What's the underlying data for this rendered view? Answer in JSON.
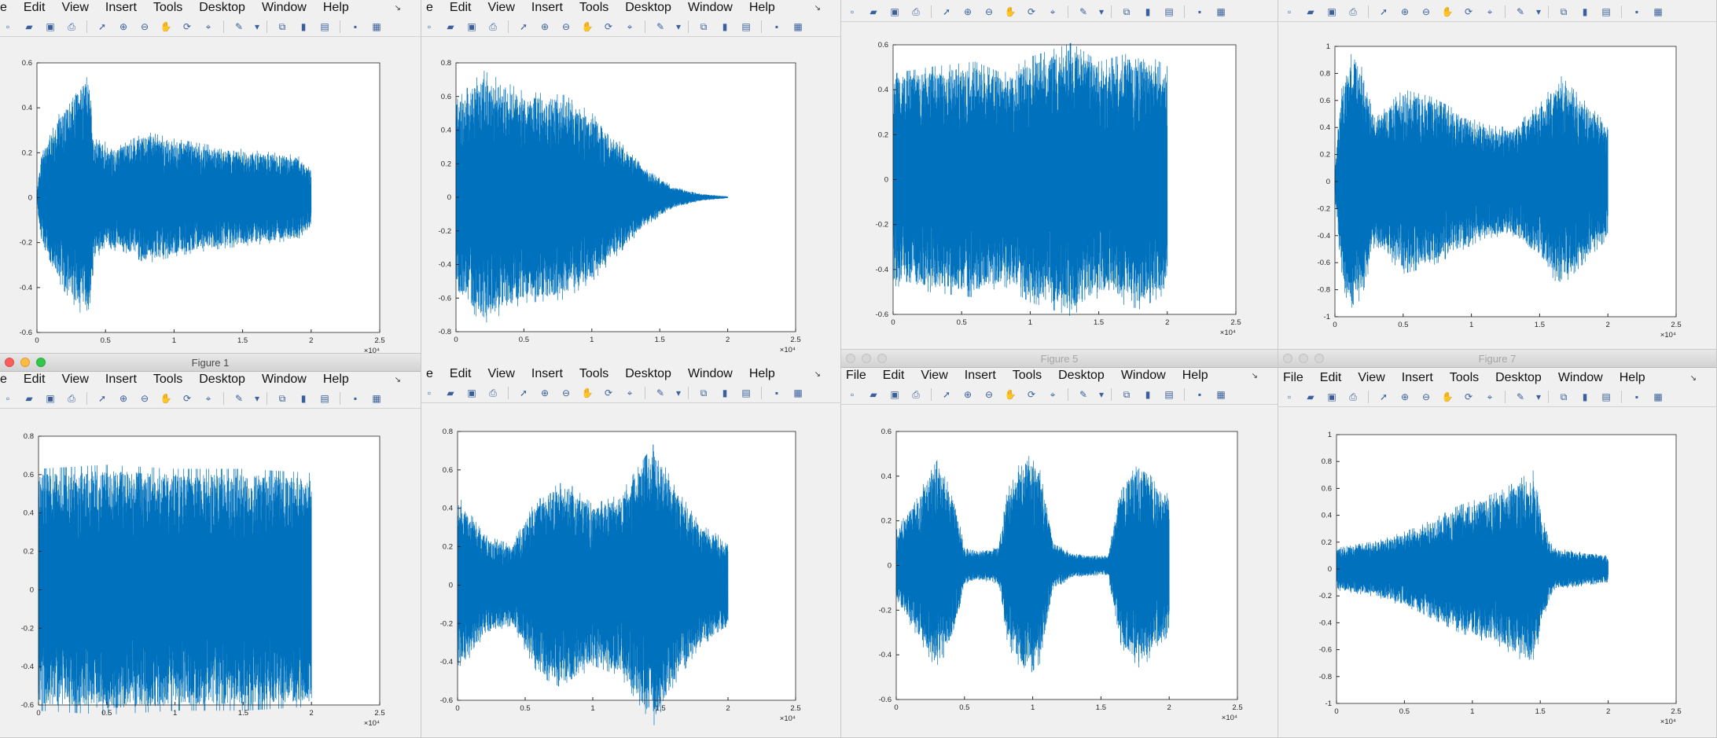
{
  "menu": [
    "File",
    "Edit",
    "View",
    "Insert",
    "Tools",
    "Desktop",
    "Window",
    "Help"
  ],
  "toolbar_icons": [
    "new-figure-icon",
    "open-file-icon",
    "save-icon",
    "print-icon",
    "pointer-icon",
    "zoom-in-icon",
    "zoom-out-icon",
    "pan-icon",
    "rotate-icon",
    "data-cursor-icon",
    "brush-icon",
    "brush-dropdown-icon",
    "link-plot-icon",
    "colorbar-icon",
    "legend-icon",
    "hide-plot-tools-icon",
    "show-plot-tools-icon"
  ],
  "colors": {
    "line": "#0072BD",
    "axes": "#262626",
    "window_bg": "#f0f0f0"
  },
  "windows": [
    {
      "id": "w1",
      "title": "",
      "menu_first": "e",
      "dock": "↘",
      "chart_data": {
        "type": "line",
        "xlim": [
          0,
          2.5
        ],
        "ylim": [
          -0.6,
          0.6
        ],
        "x_ticks": [
          "0",
          "0.5",
          "1",
          "1.5",
          "2",
          "2.5"
        ],
        "y_ticks": [
          "-0.6",
          "-0.4",
          "-0.2",
          "0",
          "0.2",
          "0.4",
          "0.6"
        ],
        "x_exponent": "×10⁴",
        "signal": {
          "length": 2.0,
          "envelope": [
            [
              0,
              0.02
            ],
            [
              0.03,
              0.18
            ],
            [
              0.18,
              0.38
            ],
            [
              0.3,
              0.48
            ],
            [
              0.38,
              0.52
            ],
            [
              0.42,
              0.25
            ],
            [
              0.6,
              0.22
            ],
            [
              0.8,
              0.28
            ],
            [
              1.0,
              0.25
            ],
            [
              1.3,
              0.22
            ],
            [
              1.6,
              0.2
            ],
            [
              1.9,
              0.18
            ],
            [
              2.0,
              0.12
            ]
          ]
        }
      }
    },
    {
      "id": "w2",
      "title": "",
      "menu_first": "e",
      "dock": "↘",
      "chart_data": {
        "type": "line",
        "xlim": [
          0,
          2.5
        ],
        "ylim": [
          -0.8,
          0.8
        ],
        "x_ticks": [
          "0",
          "0.5",
          "1",
          "1.5",
          "2",
          "2.5"
        ],
        "y_ticks": [
          "-0.8",
          "-0.6",
          "-0.4",
          "-0.2",
          "0",
          "0.2",
          "0.4",
          "0.6",
          "0.8"
        ],
        "x_exponent": "×10⁴",
        "signal": {
          "length": 2.0,
          "envelope": [
            [
              0,
              0.55
            ],
            [
              0.2,
              0.72
            ],
            [
              0.5,
              0.6
            ],
            [
              0.8,
              0.58
            ],
            [
              1.0,
              0.48
            ],
            [
              1.2,
              0.32
            ],
            [
              1.4,
              0.16
            ],
            [
              1.6,
              0.06
            ],
            [
              1.8,
              0.02
            ],
            [
              2.0,
              0.005
            ]
          ]
        }
      }
    },
    {
      "id": "w3",
      "title": "",
      "menu_first": "",
      "dock": "",
      "chart_data": {
        "type": "line",
        "xlim": [
          0,
          2.5
        ],
        "ylim": [
          -0.6,
          0.6
        ],
        "x_ticks": [
          "0",
          "0.5",
          "1",
          "1.5",
          "2",
          "2.5"
        ],
        "y_ticks": [
          "-0.6",
          "-0.4",
          "-0.2",
          "0",
          "0.2",
          "0.4",
          "0.6"
        ],
        "x_exponent": "×10⁴",
        "signal": {
          "length": 2.0,
          "envelope": [
            [
              0,
              0.45
            ],
            [
              0.3,
              0.48
            ],
            [
              0.6,
              0.5
            ],
            [
              0.8,
              0.45
            ],
            [
              1.0,
              0.52
            ],
            [
              1.3,
              0.58
            ],
            [
              1.5,
              0.5
            ],
            [
              1.8,
              0.55
            ],
            [
              2.0,
              0.48
            ]
          ]
        }
      }
    },
    {
      "id": "w4",
      "title": "",
      "menu_first": "",
      "dock": "",
      "chart_data": {
        "type": "line",
        "xlim": [
          0,
          2.5
        ],
        "ylim": [
          -1,
          1
        ],
        "x_ticks": [
          "0",
          "0.5",
          "1",
          "1.5",
          "2",
          "2.5"
        ],
        "y_ticks": [
          "-1",
          "-0.8",
          "-0.6",
          "-0.4",
          "-0.2",
          "0",
          "0.2",
          "0.4",
          "0.6",
          "0.8",
          "1"
        ],
        "x_exponent": "×10⁴",
        "signal": {
          "length": 2.0,
          "envelope": [
            [
              0,
              0.1
            ],
            [
              0.05,
              0.7
            ],
            [
              0.12,
              0.95
            ],
            [
              0.2,
              0.8
            ],
            [
              0.3,
              0.45
            ],
            [
              0.5,
              0.65
            ],
            [
              0.7,
              0.6
            ],
            [
              0.9,
              0.5
            ],
            [
              1.1,
              0.4
            ],
            [
              1.3,
              0.38
            ],
            [
              1.5,
              0.55
            ],
            [
              1.65,
              0.75
            ],
            [
              1.8,
              0.6
            ],
            [
              2.0,
              0.4
            ]
          ]
        }
      }
    },
    {
      "id": "w5",
      "title": "Figure 1",
      "menu_first": "e",
      "dock": "↘",
      "chart_data": {
        "type": "line",
        "xlim": [
          0,
          2.5
        ],
        "ylim": [
          -0.6,
          0.8
        ],
        "x_ticks": [
          "0",
          "0.5",
          "1",
          "1.5",
          "2",
          "2.5"
        ],
        "y_ticks": [
          "-0.6",
          "-0.4",
          "-0.2",
          "0",
          "0.2",
          "0.4",
          "0.6",
          "0.8"
        ],
        "x_exponent": "×10⁴",
        "signal": {
          "length": 2.0,
          "envelope": [
            [
              0,
              0.6
            ],
            [
              0.5,
              0.62
            ],
            [
              1.0,
              0.6
            ],
            [
              1.5,
              0.6
            ],
            [
              2.0,
              0.58
            ]
          ]
        }
      }
    },
    {
      "id": "w6",
      "title": "",
      "menu_first": "e",
      "dock": "↘",
      "chart_data": {
        "type": "line",
        "xlim": [
          0,
          2.5
        ],
        "ylim": [
          -0.6,
          0.8
        ],
        "x_ticks": [
          "0",
          "0.5",
          "1",
          "1.5",
          "2",
          "2.5"
        ],
        "y_ticks": [
          "-0.6",
          "-0.4",
          "-0.2",
          "0",
          "0.2",
          "0.4",
          "0.6",
          "0.8"
        ],
        "x_exponent": "×10⁴",
        "signal": {
          "length": 2.0,
          "envelope": [
            [
              0,
              0.45
            ],
            [
              0.2,
              0.25
            ],
            [
              0.4,
              0.2
            ],
            [
              0.6,
              0.45
            ],
            [
              0.8,
              0.52
            ],
            [
              1.0,
              0.4
            ],
            [
              1.2,
              0.45
            ],
            [
              1.45,
              0.7
            ],
            [
              1.6,
              0.5
            ],
            [
              1.8,
              0.3
            ],
            [
              2.0,
              0.22
            ]
          ]
        }
      }
    },
    {
      "id": "w7",
      "title": "Figure 5",
      "menu_first": "File",
      "dock": "↘",
      "chart_data": {
        "type": "line",
        "xlim": [
          0,
          2.5
        ],
        "ylim": [
          -0.6,
          0.6
        ],
        "x_ticks": [
          "0",
          "0.5",
          "1",
          "1.5",
          "2",
          "2.5"
        ],
        "y_ticks": [
          "-0.6",
          "-0.4",
          "-0.2",
          "0",
          "0.2",
          "0.4",
          "0.6"
        ],
        "x_exponent": "×10⁴",
        "signal": {
          "length": 2.0,
          "envelope": [
            [
              0,
              0.15
            ],
            [
              0.15,
              0.3
            ],
            [
              0.3,
              0.45
            ],
            [
              0.42,
              0.3
            ],
            [
              0.5,
              0.08
            ],
            [
              0.6,
              0.06
            ],
            [
              0.75,
              0.08
            ],
            [
              0.82,
              0.35
            ],
            [
              0.95,
              0.48
            ],
            [
              1.05,
              0.42
            ],
            [
              1.15,
              0.1
            ],
            [
              1.3,
              0.05
            ],
            [
              1.55,
              0.04
            ],
            [
              1.65,
              0.35
            ],
            [
              1.8,
              0.45
            ],
            [
              1.9,
              0.35
            ],
            [
              2.0,
              0.3
            ]
          ]
        }
      }
    },
    {
      "id": "w8",
      "title": "Figure 7",
      "menu_first": "File",
      "dock": "↘",
      "chart_data": {
        "type": "line",
        "xlim": [
          0,
          2.5
        ],
        "ylim": [
          -1,
          1
        ],
        "x_ticks": [
          "0",
          "0.5",
          "1",
          "1.5",
          "2",
          "2.5"
        ],
        "y_ticks": [
          "-1",
          "-0.8",
          "-0.6",
          "-0.4",
          "-0.2",
          "0",
          "0.2",
          "0.4",
          "0.6",
          "0.8",
          "1"
        ],
        "x_exponent": "×10⁴",
        "signal": {
          "length": 2.0,
          "envelope": [
            [
              0,
              0.15
            ],
            [
              0.3,
              0.2
            ],
            [
              0.6,
              0.3
            ],
            [
              0.9,
              0.45
            ],
            [
              1.2,
              0.55
            ],
            [
              1.45,
              0.7
            ],
            [
              1.52,
              0.35
            ],
            [
              1.6,
              0.15
            ],
            [
              1.8,
              0.12
            ],
            [
              2.0,
              0.1
            ]
          ]
        }
      }
    }
  ]
}
